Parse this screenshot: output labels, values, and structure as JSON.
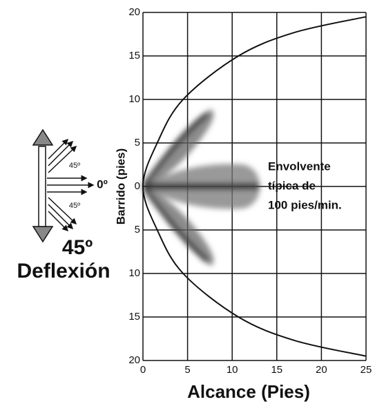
{
  "chart_data": {
    "type": "line",
    "xlabel": "Alcance (Pies)",
    "ylabel": "Barrido (pies)",
    "xlim": [
      0,
      25
    ],
    "ylim": [
      -20,
      20
    ],
    "xticks": [
      0,
      5,
      10,
      15,
      20,
      25
    ],
    "yticks": [
      20,
      15,
      10,
      5,
      0,
      {
        "value": -5,
        "label": "5"
      },
      {
        "value": -10,
        "label": "10"
      },
      {
        "value": -15,
        "label": "15"
      },
      {
        "value": -20,
        "label": "20"
      }
    ],
    "grid": true,
    "series": [
      {
        "color": "#111111",
        "x": [
          25,
          17,
          10.7,
          4.5,
          1.6,
          0,
          1.6,
          4.5,
          10.7,
          17,
          25
        ],
        "values": [
          -19.5,
          -17.7,
          -15,
          -10,
          -5,
          0,
          5,
          10,
          15,
          17.7,
          19.5
        ]
      }
    ],
    "annotations": [
      "Envolvente",
      "típica de",
      "100 pies/min."
    ],
    "inset_labels": [
      "45º",
      "0º",
      "45º"
    ],
    "inset_title": [
      "45º",
      "Deflexión"
    ]
  }
}
